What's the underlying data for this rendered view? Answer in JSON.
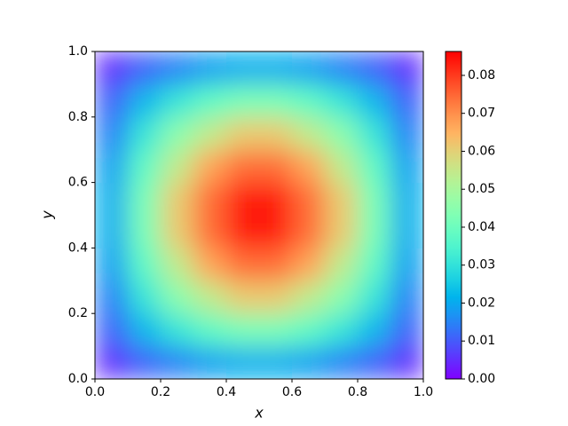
{
  "chart_data": {
    "type": "heatmap",
    "xlabel": "x",
    "ylabel": "y",
    "colormap": "rainbow",
    "x": [
      0.05,
      0.15,
      0.25,
      0.35,
      0.45,
      0.55,
      0.65,
      0.75,
      0.85,
      0.95
    ],
    "y": [
      0.05,
      0.15,
      0.25,
      0.35,
      0.45,
      0.55,
      0.65,
      0.75,
      0.85,
      0.95
    ],
    "z": [
      [
        0.005,
        0.011,
        0.015,
        0.019,
        0.021,
        0.021,
        0.019,
        0.015,
        0.011,
        0.005
      ],
      [
        0.011,
        0.022,
        0.031,
        0.038,
        0.042,
        0.042,
        0.038,
        0.031,
        0.022,
        0.011
      ],
      [
        0.015,
        0.031,
        0.045,
        0.054,
        0.061,
        0.061,
        0.054,
        0.045,
        0.031,
        0.015
      ],
      [
        0.019,
        0.038,
        0.054,
        0.067,
        0.074,
        0.074,
        0.067,
        0.054,
        0.038,
        0.019
      ],
      [
        0.021,
        0.042,
        0.061,
        0.074,
        0.083,
        0.083,
        0.074,
        0.061,
        0.042,
        0.021
      ],
      [
        0.021,
        0.042,
        0.061,
        0.074,
        0.083,
        0.083,
        0.074,
        0.061,
        0.042,
        0.021
      ],
      [
        0.019,
        0.038,
        0.054,
        0.067,
        0.074,
        0.074,
        0.067,
        0.054,
        0.038,
        0.019
      ],
      [
        0.015,
        0.031,
        0.045,
        0.054,
        0.061,
        0.061,
        0.054,
        0.045,
        0.031,
        0.015
      ],
      [
        0.011,
        0.022,
        0.031,
        0.038,
        0.042,
        0.042,
        0.038,
        0.031,
        0.022,
        0.011
      ],
      [
        0.005,
        0.011,
        0.015,
        0.019,
        0.021,
        0.021,
        0.019,
        0.015,
        0.011,
        0.005
      ]
    ],
    "xlim": [
      0,
      1
    ],
    "ylim": [
      0,
      1
    ],
    "clim": [
      0,
      0.0863
    ],
    "xticks": [
      {
        "value": 0,
        "label": "0.0"
      },
      {
        "value": 0.2,
        "label": "0.2"
      },
      {
        "value": 0.4,
        "label": "0.4"
      },
      {
        "value": 0.6,
        "label": "0.6"
      },
      {
        "value": 0.8,
        "label": "0.8"
      },
      {
        "value": 1,
        "label": "1.0"
      }
    ],
    "yticks": [
      {
        "value": 0,
        "label": "0.0"
      },
      {
        "value": 0.2,
        "label": "0.2"
      },
      {
        "value": 0.4,
        "label": "0.4"
      },
      {
        "value": 0.6,
        "label": "0.6"
      },
      {
        "value": 0.8,
        "label": "0.8"
      },
      {
        "value": 1,
        "label": "1.0"
      }
    ],
    "cticks": [
      {
        "value": 0,
        "label": "0.00"
      },
      {
        "value": 0.01,
        "label": "0.01"
      },
      {
        "value": 0.02,
        "label": "0.02"
      },
      {
        "value": 0.03,
        "label": "0.03"
      },
      {
        "value": 0.04,
        "label": "0.04"
      },
      {
        "value": 0.05,
        "label": "0.05"
      },
      {
        "value": 0.06,
        "label": "0.06"
      },
      {
        "value": 0.07,
        "label": "0.07"
      },
      {
        "value": 0.08,
        "label": "0.08"
      }
    ]
  }
}
